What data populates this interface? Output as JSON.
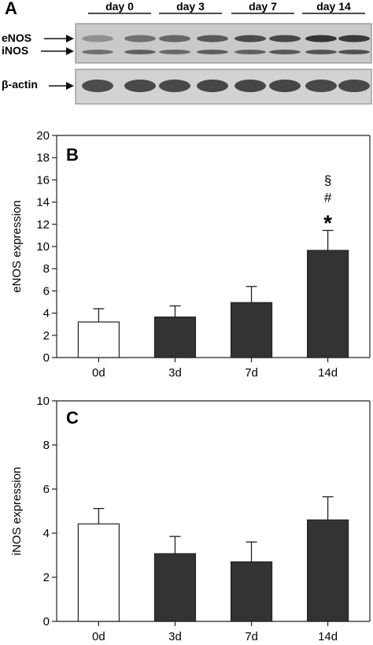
{
  "blot": {
    "panel_letter": "A",
    "lanes": [
      "day 0",
      "day 3",
      "day 7",
      "day 14"
    ],
    "row_labels": {
      "enos": "eNOS",
      "inos": "iNOS",
      "actin": "β-actin"
    },
    "band_intensity": {
      "enos": [
        0.35,
        0.55,
        0.62,
        0.7,
        0.78,
        0.8,
        0.92,
        0.88
      ],
      "inos": [
        0.55,
        0.65,
        0.6,
        0.66,
        0.64,
        0.7,
        0.72,
        0.74
      ],
      "actin": [
        0.78,
        0.8,
        0.8,
        0.82,
        0.82,
        0.82,
        0.8,
        0.8
      ]
    }
  },
  "chart_data": [
    {
      "type": "bar",
      "panel_letter": "B",
      "categories": [
        "0d",
        "3d",
        "7d",
        "14d"
      ],
      "values": [
        3.2,
        3.65,
        4.95,
        9.65
      ],
      "errors": [
        1.2,
        1.0,
        1.45,
        1.8
      ],
      "bar_fill": [
        "#ffffff",
        "#333333",
        "#333333",
        "#333333"
      ],
      "ylabel": "eNOS expression",
      "ylim": [
        0,
        20
      ],
      "yticks": [
        0,
        2,
        4,
        6,
        8,
        10,
        12,
        14,
        16,
        18,
        20
      ],
      "annotations": [
        {
          "category": "14d",
          "marks": [
            "§",
            "#",
            "*"
          ]
        }
      ]
    },
    {
      "type": "bar",
      "panel_letter": "C",
      "categories": [
        "0d",
        "3d",
        "7d",
        "14d"
      ],
      "values": [
        4.42,
        3.07,
        2.7,
        4.6
      ],
      "errors": [
        0.7,
        0.78,
        0.9,
        1.05
      ],
      "bar_fill": [
        "#ffffff",
        "#333333",
        "#333333",
        "#333333"
      ],
      "ylabel": "iNOS expression",
      "ylim": [
        0,
        10
      ],
      "yticks": [
        0,
        2,
        4,
        6,
        8,
        10
      ],
      "annotations": []
    }
  ]
}
